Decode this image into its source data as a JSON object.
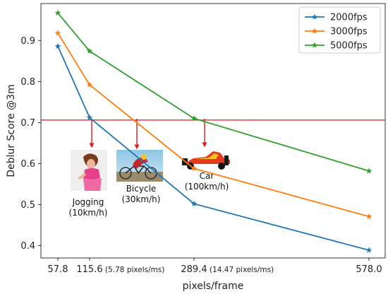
{
  "chart_data": {
    "type": "line",
    "title": "",
    "xlabel": "pixels/frame",
    "ylabel": "Deblur Score @3m",
    "x": [
      57.8,
      115.6,
      289.4,
      578.0
    ],
    "x_tick_labels": [
      "57.8",
      "115.6",
      "289.4",
      "578.0"
    ],
    "x_tick_notes": [
      "",
      "(5.78 pixels/ms)",
      "(14.47 pixels/ms)",
      ""
    ],
    "ylim": [
      0.37,
      0.99
    ],
    "y_ticks": [
      0.4,
      0.5,
      0.6,
      0.7,
      0.8,
      0.9
    ],
    "y_tick_labels": [
      "0.4",
      "0.5",
      "0.6",
      "0.7",
      "0.8",
      "0.9"
    ],
    "grid": false,
    "legend_position": "top-right",
    "series": [
      {
        "name": "2000fps",
        "color": "#1f77b4",
        "values": [
          0.886,
          0.712,
          0.502,
          0.389
        ]
      },
      {
        "name": "3000fps",
        "color": "#ff7f0e",
        "values": [
          0.918,
          0.792,
          0.588,
          0.471
        ]
      },
      {
        "name": "5000fps",
        "color": "#2ca02c",
        "values": [
          0.967,
          0.874,
          0.71,
          0.582
        ]
      }
    ],
    "threshold": {
      "value": 0.706,
      "color": "#e31a1c"
    },
    "annotations": [
      {
        "line1": "Jogging",
        "line2": "(10km/h)",
        "icon": "jogging-woman-photo"
      },
      {
        "line1": "Bicycle",
        "line2": "(30km/h)",
        "icon": "cyclist-photo"
      },
      {
        "line1": "Car",
        "line2": "(100km/h)",
        "icon": "race-car-photo"
      }
    ]
  }
}
